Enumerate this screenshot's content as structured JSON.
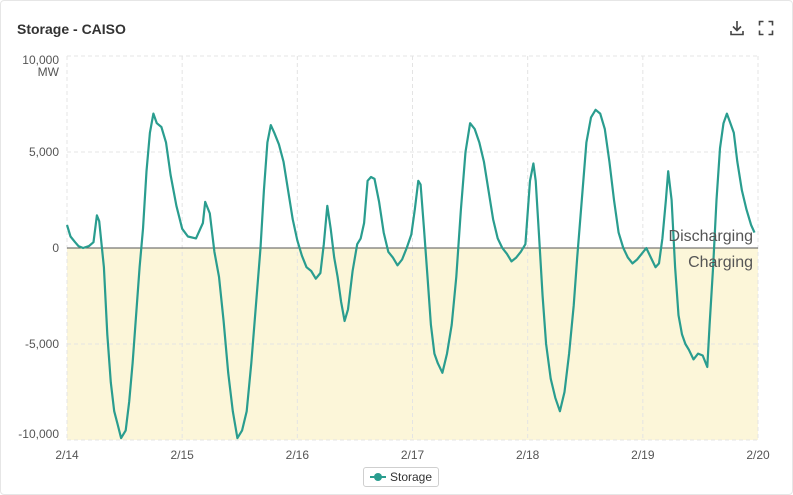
{
  "header": {
    "title": "Storage - CAISO",
    "download_icon": "download-icon",
    "fullscreen_icon": "fullscreen-icon"
  },
  "legend": {
    "label": "Storage"
  },
  "colors": {
    "series": "#2a9d8f",
    "charging_fill": "#fcf6d9",
    "zero_line": "#555555",
    "grid": "#e4e4e4"
  },
  "chart_data": {
    "type": "line",
    "title": "Storage - CAISO",
    "ylabel": "MW",
    "xlim": [
      0,
      6
    ],
    "ylim": [
      -10000,
      10000
    ],
    "x_ticks": [
      {
        "value": 0,
        "label": "2/14"
      },
      {
        "value": 1,
        "label": "2/15"
      },
      {
        "value": 2,
        "label": "2/16"
      },
      {
        "value": 3,
        "label": "2/17"
      },
      {
        "value": 4,
        "label": "2/18"
      },
      {
        "value": 5,
        "label": "2/19"
      },
      {
        "value": 6,
        "label": "2/20"
      }
    ],
    "y_ticks": [
      {
        "value": 10000,
        "label": "10,000"
      },
      {
        "value": 5000,
        "label": "5,000"
      },
      {
        "value": 0,
        "label": "0"
      },
      {
        "value": -5000,
        "label": "-5,000"
      },
      {
        "value": -10000,
        "label": "-10,000"
      }
    ],
    "grid": true,
    "shaded_region": {
      "from": -10000,
      "to": 0,
      "label": "Charging"
    },
    "annotations": {
      "above_zero": "Discharging",
      "below_zero": "Charging"
    },
    "series": [
      {
        "name": "Storage",
        "points": [
          [
            0.0,
            1200
          ],
          [
            0.03,
            600
          ],
          [
            0.07,
            300
          ],
          [
            0.1,
            100
          ],
          [
            0.14,
            0
          ],
          [
            0.19,
            100
          ],
          [
            0.23,
            300
          ],
          [
            0.26,
            1700
          ],
          [
            0.28,
            1400
          ],
          [
            0.32,
            -1000
          ],
          [
            0.35,
            -4500
          ],
          [
            0.38,
            -7000
          ],
          [
            0.41,
            -8500
          ],
          [
            0.44,
            -9200
          ],
          [
            0.47,
            -9900
          ],
          [
            0.51,
            -9500
          ],
          [
            0.54,
            -8000
          ],
          [
            0.57,
            -6000
          ],
          [
            0.6,
            -3500
          ],
          [
            0.63,
            -1000
          ],
          [
            0.66,
            1000
          ],
          [
            0.69,
            4000
          ],
          [
            0.72,
            6000
          ],
          [
            0.75,
            7000
          ],
          [
            0.78,
            6500
          ],
          [
            0.82,
            6300
          ],
          [
            0.86,
            5500
          ],
          [
            0.9,
            3800
          ],
          [
            0.95,
            2200
          ],
          [
            1.0,
            1000
          ],
          [
            1.05,
            600
          ],
          [
            1.12,
            500
          ],
          [
            1.18,
            1300
          ],
          [
            1.2,
            2400
          ],
          [
            1.24,
            1800
          ],
          [
            1.28,
            -200
          ],
          [
            1.32,
            -1500
          ],
          [
            1.36,
            -3800
          ],
          [
            1.4,
            -6500
          ],
          [
            1.44,
            -8500
          ],
          [
            1.48,
            -9900
          ],
          [
            1.52,
            -9500
          ],
          [
            1.56,
            -8500
          ],
          [
            1.6,
            -6000
          ],
          [
            1.64,
            -3000
          ],
          [
            1.68,
            0
          ],
          [
            1.71,
            3000
          ],
          [
            1.74,
            5500
          ],
          [
            1.77,
            6400
          ],
          [
            1.8,
            6000
          ],
          [
            1.84,
            5400
          ],
          [
            1.88,
            4500
          ],
          [
            1.92,
            3000
          ],
          [
            1.96,
            1500
          ],
          [
            2.0,
            400
          ],
          [
            2.04,
            -400
          ],
          [
            2.08,
            -1000
          ],
          [
            2.12,
            -1200
          ],
          [
            2.16,
            -1600
          ],
          [
            2.2,
            -1300
          ],
          [
            2.23,
            200
          ],
          [
            2.26,
            2200
          ],
          [
            2.29,
            1000
          ],
          [
            2.32,
            -500
          ],
          [
            2.35,
            -1500
          ],
          [
            2.38,
            -2800
          ],
          [
            2.41,
            -3800
          ],
          [
            2.44,
            -3200
          ],
          [
            2.48,
            -1200
          ],
          [
            2.52,
            200
          ],
          [
            2.55,
            500
          ],
          [
            2.58,
            1300
          ],
          [
            2.61,
            3500
          ],
          [
            2.64,
            3700
          ],
          [
            2.67,
            3600
          ],
          [
            2.71,
            2400
          ],
          [
            2.75,
            800
          ],
          [
            2.79,
            -200
          ],
          [
            2.83,
            -500
          ],
          [
            2.87,
            -900
          ],
          [
            2.91,
            -600
          ],
          [
            2.95,
            0
          ],
          [
            2.99,
            700
          ],
          [
            3.02,
            2000
          ],
          [
            3.05,
            3500
          ],
          [
            3.07,
            3300
          ],
          [
            3.1,
            1000
          ],
          [
            3.13,
            -1500
          ],
          [
            3.16,
            -4000
          ],
          [
            3.19,
            -5500
          ],
          [
            3.22,
            -6000
          ],
          [
            3.26,
            -6500
          ],
          [
            3.3,
            -5500
          ],
          [
            3.34,
            -4000
          ],
          [
            3.38,
            -1500
          ],
          [
            3.42,
            2000
          ],
          [
            3.46,
            5000
          ],
          [
            3.5,
            6500
          ],
          [
            3.54,
            6200
          ],
          [
            3.58,
            5500
          ],
          [
            3.62,
            4500
          ],
          [
            3.66,
            3000
          ],
          [
            3.7,
            1500
          ],
          [
            3.74,
            500
          ],
          [
            3.78,
            0
          ],
          [
            3.82,
            -300
          ],
          [
            3.86,
            -700
          ],
          [
            3.9,
            -500
          ],
          [
            3.94,
            -200
          ],
          [
            3.98,
            200
          ],
          [
            4.02,
            3500
          ],
          [
            4.05,
            4400
          ],
          [
            4.07,
            3500
          ],
          [
            4.1,
            500
          ],
          [
            4.13,
            -2500
          ],
          [
            4.16,
            -5000
          ],
          [
            4.2,
            -6800
          ],
          [
            4.24,
            -7800
          ],
          [
            4.28,
            -8500
          ],
          [
            4.32,
            -7500
          ],
          [
            4.36,
            -5500
          ],
          [
            4.4,
            -3000
          ],
          [
            4.43,
            -500
          ],
          [
            4.47,
            2500
          ],
          [
            4.51,
            5500
          ],
          [
            4.55,
            6800
          ],
          [
            4.59,
            7200
          ],
          [
            4.63,
            7000
          ],
          [
            4.67,
            6200
          ],
          [
            4.71,
            4500
          ],
          [
            4.75,
            2500
          ],
          [
            4.79,
            800
          ],
          [
            4.83,
            0
          ],
          [
            4.87,
            -500
          ],
          [
            4.91,
            -800
          ],
          [
            4.95,
            -600
          ],
          [
            4.99,
            -300
          ],
          [
            5.03,
            0
          ],
          [
            5.07,
            -500
          ],
          [
            5.11,
            -1000
          ],
          [
            5.14,
            -800
          ],
          [
            5.17,
            500
          ],
          [
            5.2,
            2500
          ],
          [
            5.22,
            4000
          ],
          [
            5.25,
            2500
          ],
          [
            5.28,
            -1000
          ],
          [
            5.31,
            -3500
          ],
          [
            5.34,
            -4500
          ],
          [
            5.37,
            -5000
          ],
          [
            5.4,
            -5300
          ],
          [
            5.44,
            -5800
          ],
          [
            5.48,
            -5500
          ],
          [
            5.52,
            -5600
          ],
          [
            5.56,
            -6200
          ],
          [
            5.58,
            -4000
          ],
          [
            5.61,
            -1000
          ],
          [
            5.64,
            2500
          ],
          [
            5.67,
            5200
          ],
          [
            5.7,
            6500
          ],
          [
            5.73,
            7000
          ],
          [
            5.76,
            6500
          ],
          [
            5.79,
            6000
          ],
          [
            5.82,
            4500
          ],
          [
            5.86,
            3000
          ],
          [
            5.9,
            2000
          ],
          [
            5.94,
            1200
          ],
          [
            5.97,
            800
          ]
        ]
      }
    ]
  }
}
